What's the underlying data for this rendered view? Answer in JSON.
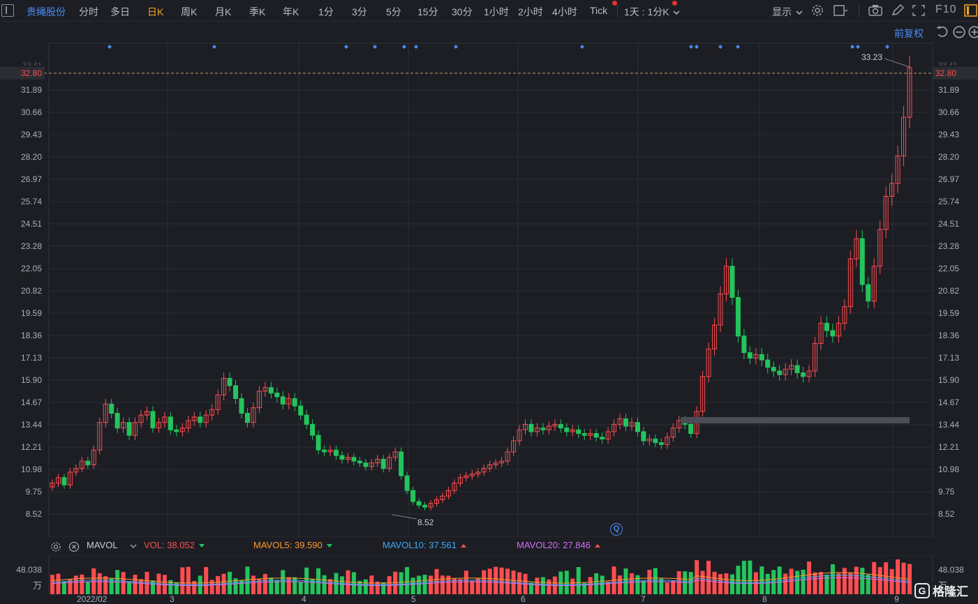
{
  "toolbar": {
    "stock_name": "贵绳股份",
    "periods": [
      "分时",
      "多日",
      "日K",
      "周K",
      "月K",
      "季K",
      "年K",
      "1分",
      "3分",
      "5分",
      "15分",
      "30分",
      "1小时",
      "2小时",
      "4小时",
      "Tick"
    ],
    "active_period": "日K",
    "interval_select": "1天 : 1分K",
    "display_label": "显示",
    "f10_label": "F10"
  },
  "chart": {
    "adjust_label": "前复权",
    "current_price": "32.80",
    "partial_top_label": "33.41",
    "high_label": "33.23",
    "low_label": "8.52",
    "left_axis": [
      "31.89",
      "30.66",
      "29.43",
      "28.20",
      "26.97",
      "25.74",
      "24.51",
      "23.28",
      "22.05",
      "20.82",
      "19.59",
      "18.36",
      "17.13",
      "15.90",
      "14.67",
      "13.44",
      "12.21",
      "10.98",
      "9.75",
      "8.52"
    ],
    "right_axis": [
      "31.89",
      "30.66",
      "29.43",
      "28.20",
      "26.97",
      "25.74",
      "24.51",
      "23.28",
      "22.05",
      "20.82",
      "19.59",
      "18.36",
      "17.13",
      "15.90",
      "14.67",
      "13.44",
      "12.21",
      "10.98",
      "9.75",
      "8.52"
    ],
    "dates": [
      "2022/02",
      "3",
      "4",
      "5",
      "6",
      "7",
      "8",
      "9"
    ],
    "up_color": "#ff4d4f",
    "down_color": "#24c45c",
    "marker_color": "#4d8bf0",
    "q_marker": "Q"
  },
  "volume": {
    "indicator": "MAVOL",
    "vol": "VOL: 38.052",
    "mavol5": "MAVOL5: 39.590",
    "mavol10": "MAVOL10: 37.561",
    "mavol20": "MAVOL20: 27.846",
    "axis_value": "48.038",
    "axis_unit": "万",
    "mavol5_color": "#ff9a2e",
    "mavol10_color": "#3fa9f5",
    "mavol20_color": "#d36ef5"
  },
  "watermark": {
    "text": "格隆汇",
    "logo_letter": "G"
  }
}
